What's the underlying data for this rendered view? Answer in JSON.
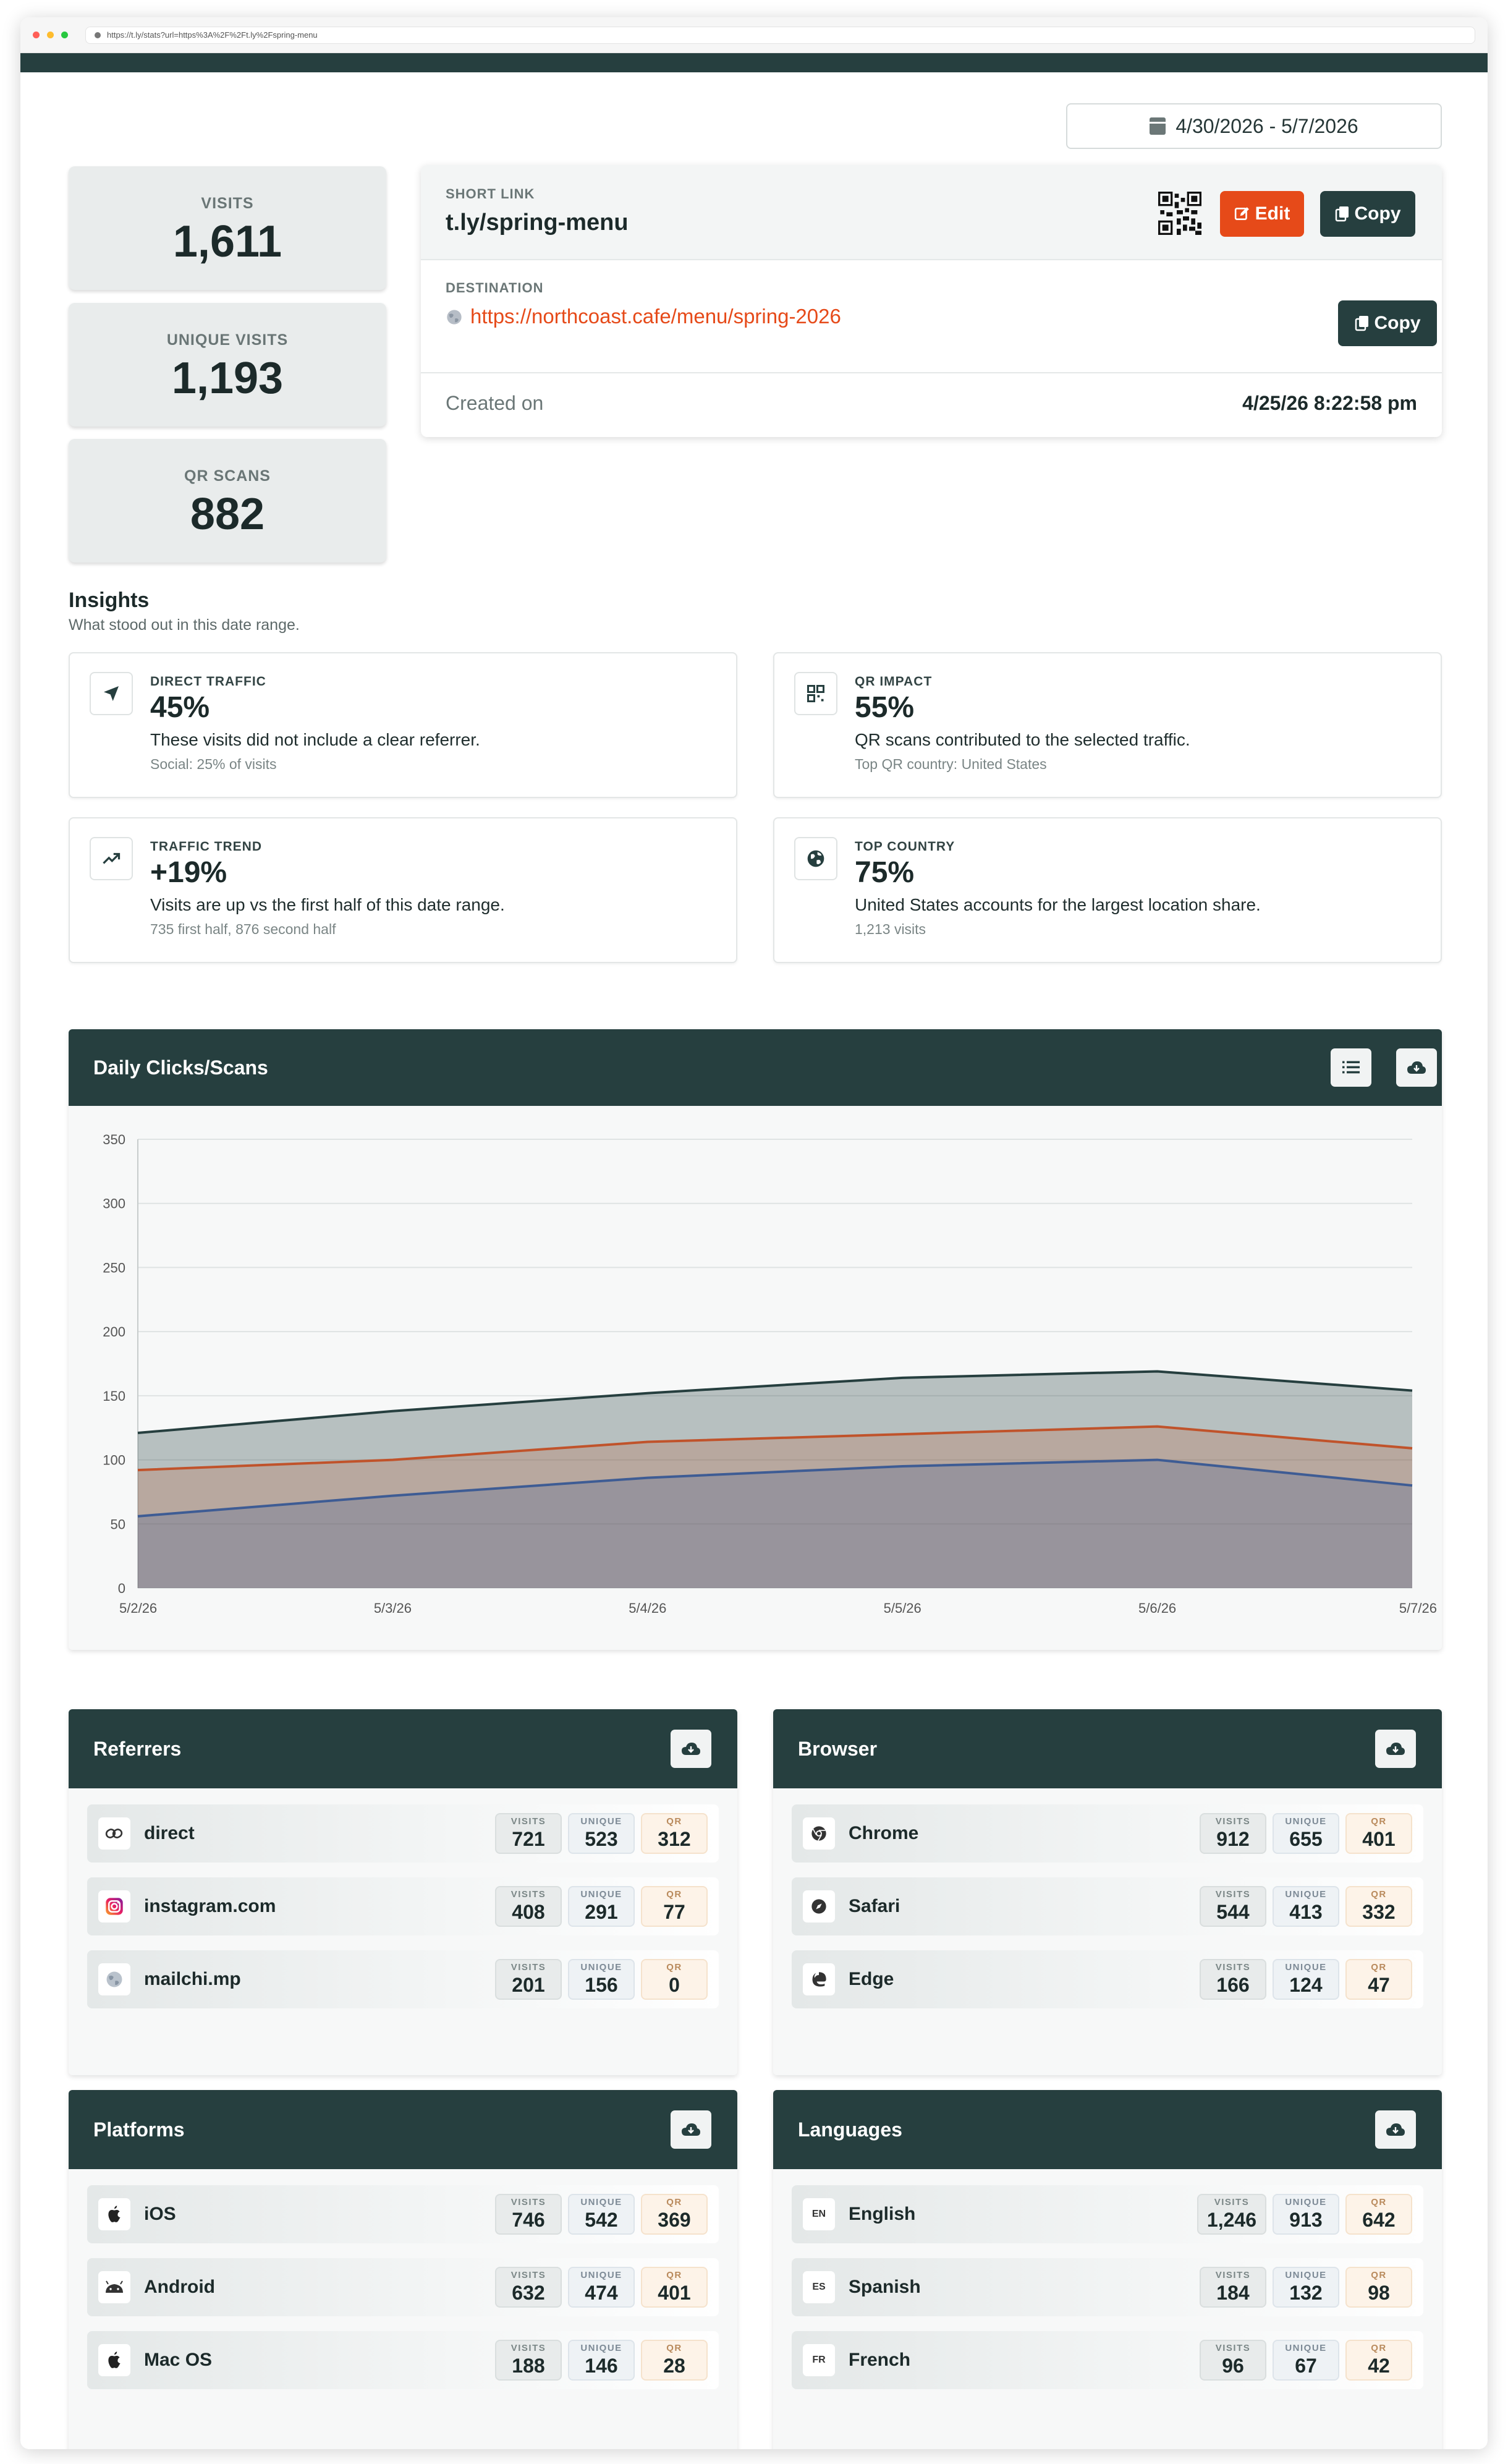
{
  "browser": {
    "url": "https://t.ly/stats?url=https%3A%2F%2Ft.ly%2Fspring-menu"
  },
  "date_range": "4/30/2026 - 5/7/2026",
  "stats": [
    {
      "label": "VISITS",
      "value": "1,611"
    },
    {
      "label": "UNIQUE VISITS",
      "value": "1,193"
    },
    {
      "label": "QR SCANS",
      "value": "882"
    }
  ],
  "link": {
    "short_label": "SHORT LINK",
    "short_url": "t.ly/spring-menu",
    "edit_label": "Edit",
    "copy_label": "Copy",
    "dest_label": "DESTINATION",
    "dest_url": "https://northcoast.cafe/menu/spring-2026",
    "created_label": "Created on",
    "created_value": "4/25/26 8:22:58 pm"
  },
  "insights": {
    "title": "Insights",
    "subtitle": "What stood out in this date range.",
    "cards": [
      {
        "key": "DIRECT TRAFFIC",
        "value": "45%",
        "desc": "These visits did not include a clear referrer.",
        "note": "Social: 25% of visits",
        "icon": "navigation-arrow-icon"
      },
      {
        "key": "QR IMPACT",
        "value": "55%",
        "desc": "QR scans contributed to the selected traffic.",
        "note": "Top QR country: United States",
        "icon": "qr-grid-icon"
      },
      {
        "key": "TRAFFIC TREND",
        "value": "+19%",
        "desc": "Visits are up vs the first half of this date range.",
        "note": "735 first half, 876 second half",
        "icon": "trend-up-icon"
      },
      {
        "key": "TOP COUNTRY",
        "value": "75%",
        "desc": "United States accounts for the largest location share.",
        "note": "1,213 visits",
        "icon": "globe-icon"
      }
    ]
  },
  "chart_title": "Daily Clicks/Scans",
  "chart_data": {
    "type": "area",
    "x": [
      "5/2/26",
      "5/3/26",
      "5/4/26",
      "5/5/26",
      "5/6/26",
      "5/7/26"
    ],
    "ylim": [
      0,
      350
    ],
    "yticks": [
      0,
      50,
      100,
      150,
      200,
      250,
      300,
      350
    ],
    "series": [
      {
        "values": [
          121,
          138,
          152,
          164,
          169,
          154
        ],
        "color": "#263f3f"
      },
      {
        "values": [
          92,
          100,
          114,
          120,
          126,
          109
        ],
        "color": "#c0532b"
      },
      {
        "values": [
          56,
          72,
          86,
          95,
          100,
          80
        ],
        "color": "#3e5c94"
      }
    ],
    "grid": true
  },
  "tables": [
    {
      "title": "Referrers",
      "rows": [
        {
          "name": "direct",
          "icon": "link-icon",
          "visits": "721",
          "unique": "523",
          "qr": "312"
        },
        {
          "name": "instagram.com",
          "icon": "instagram-icon",
          "visits": "408",
          "unique": "291",
          "qr": "77"
        },
        {
          "name": "mailchi.mp",
          "icon": "globe-icon",
          "visits": "201",
          "unique": "156",
          "qr": "0"
        }
      ]
    },
    {
      "title": "Browser",
      "rows": [
        {
          "name": "Chrome",
          "icon": "chrome-icon",
          "visits": "912",
          "unique": "655",
          "qr": "401"
        },
        {
          "name": "Safari",
          "icon": "safari-icon",
          "visits": "544",
          "unique": "413",
          "qr": "332"
        },
        {
          "name": "Edge",
          "icon": "edge-icon",
          "visits": "166",
          "unique": "124",
          "qr": "47"
        }
      ]
    },
    {
      "title": "Platforms",
      "rows": [
        {
          "name": "iOS",
          "icon": "apple-icon",
          "visits": "746",
          "unique": "542",
          "qr": "369"
        },
        {
          "name": "Android",
          "icon": "android-icon",
          "visits": "632",
          "unique": "474",
          "qr": "401"
        },
        {
          "name": "Mac OS",
          "icon": "apple-icon",
          "visits": "188",
          "unique": "146",
          "qr": "28"
        }
      ]
    },
    {
      "title": "Languages",
      "rows": [
        {
          "name": "English",
          "icon": "EN",
          "visits": "1,246",
          "unique": "913",
          "qr": "642"
        },
        {
          "name": "Spanish",
          "icon": "ES",
          "visits": "184",
          "unique": "132",
          "qr": "98"
        },
        {
          "name": "French",
          "icon": "FR",
          "visits": "96",
          "unique": "67",
          "qr": "42"
        }
      ]
    }
  ],
  "pill_labels": {
    "visits": "VISITS",
    "unique": "UNIQUE",
    "qr": "QR"
  }
}
